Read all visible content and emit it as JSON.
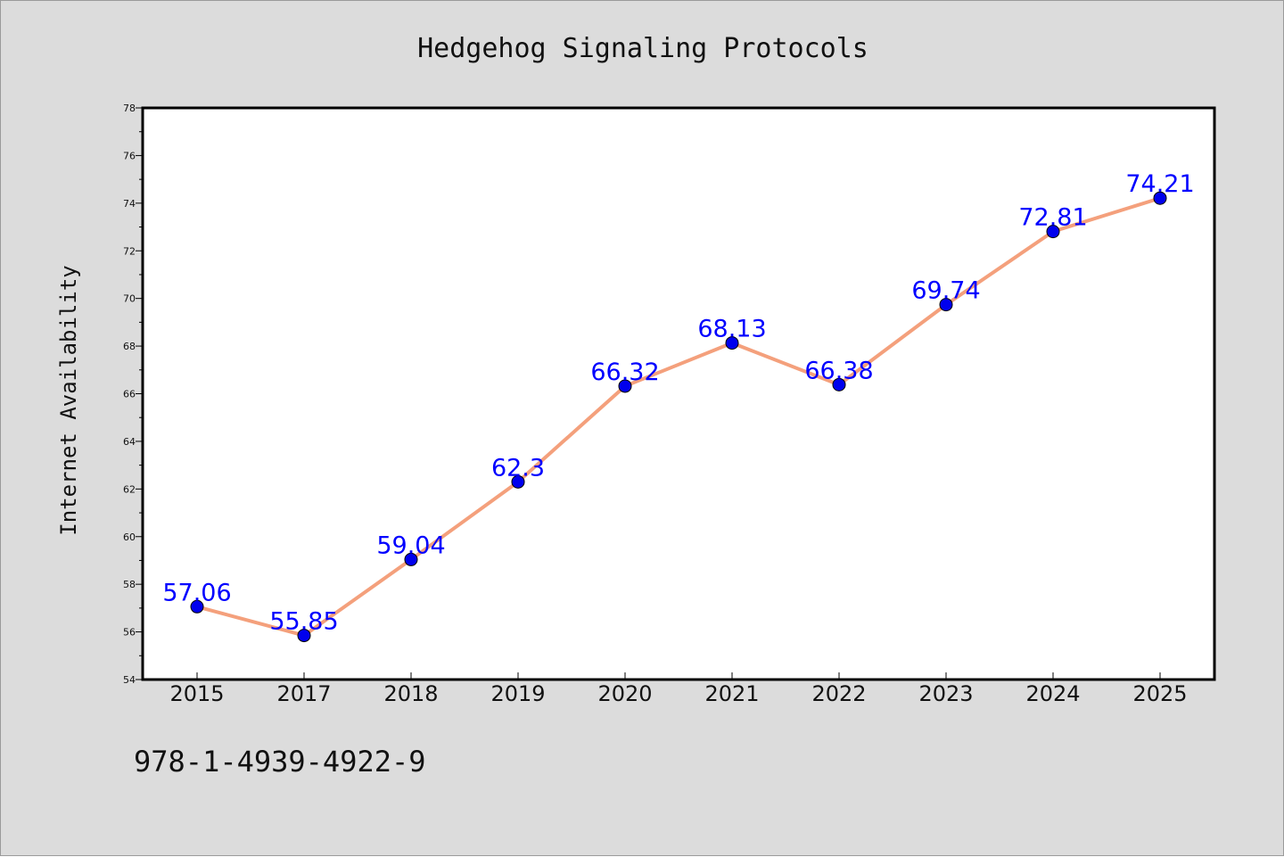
{
  "chart_data": {
    "type": "line",
    "title": "Hedgehog Signaling Protocols",
    "xlabel": "",
    "ylabel": "Internet Availability",
    "categories": [
      "2015",
      "2017",
      "2018",
      "2019",
      "2020",
      "2021",
      "2022",
      "2023",
      "2024",
      "2025"
    ],
    "series": [
      {
        "values": [
          57.06,
          55.85,
          59.04,
          62.3,
          66.32,
          68.13,
          66.38,
          69.74,
          72.81,
          74.21
        ],
        "data_labels": [
          "57.06",
          "55.85",
          "59.04",
          "62.3",
          "66.32",
          "68.13",
          "66.38",
          "69.74",
          "72.81",
          "74.21"
        ],
        "line_color": "#f4a07c",
        "marker_color": "#0000ee",
        "label_color": "#0000ff"
      }
    ],
    "ylim": [
      54,
      78
    ],
    "yticks": [
      "54",
      "56",
      "58",
      "60",
      "62",
      "64",
      "66",
      "68",
      "70",
      "72",
      "74",
      "76",
      "78"
    ],
    "grid": false,
    "legend": "none",
    "background_color": "#dcdcdc",
    "plot_background_color": "#ffffff"
  },
  "footnote": "978-1-4939-4922-9"
}
